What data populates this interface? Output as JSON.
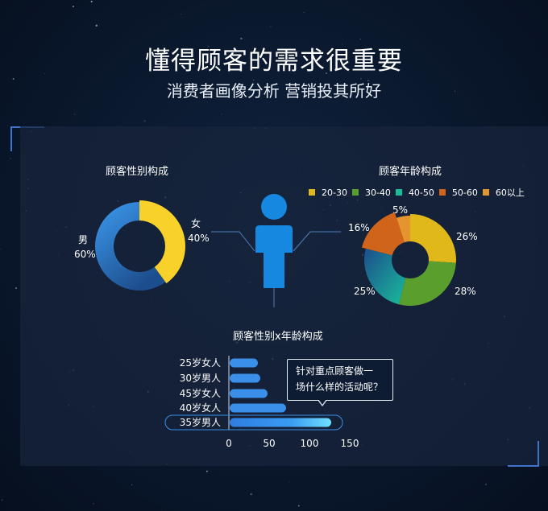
{
  "header": {
    "title": "懂得顾客的需求很重要",
    "subtitle": "消费者画像分析 营销投其所好"
  },
  "colors": {
    "male": "#3a8fe8",
    "female": "#f8d12a",
    "age_20_30": "#e0b81a",
    "age_30_40": "#5a9e2e",
    "age_40_50": "#1abc9c",
    "age_50_60": "#d0641a",
    "age_60_plus": "#e59530",
    "bar": "#3a8fe8",
    "figure": "#1688e0"
  },
  "icons": {
    "figure": "person-icon"
  },
  "tooltip": {
    "line1": "针对重点顾客做一",
    "line2": "场什么样的活动呢？"
  },
  "chart_data": [
    {
      "type": "pie",
      "title": "顾客性别构成",
      "categories": [
        "男",
        "女"
      ],
      "values": [
        60,
        40
      ],
      "labels": [
        "60%",
        "40%"
      ]
    },
    {
      "type": "pie",
      "title": "顾客年龄构成",
      "categories": [
        "20-30",
        "30-40",
        "40-50",
        "50-60",
        "60以上"
      ],
      "values": [
        26,
        28,
        25,
        16,
        5
      ],
      "labels": [
        "26%",
        "28%",
        "25%",
        "16%",
        "5%"
      ],
      "legend": "top"
    },
    {
      "type": "bar",
      "title": "顾客性别x年龄构成",
      "orientation": "horizontal",
      "categories": [
        "25岁女人",
        "30岁男人",
        "45岁女人",
        "40岁女人",
        "35岁男人"
      ],
      "values": [
        35,
        38,
        47,
        70,
        126
      ],
      "highlight": "35岁男人",
      "xlim": [
        0,
        150
      ],
      "xticks": [
        "0",
        "50",
        "100",
        "150"
      ]
    }
  ]
}
